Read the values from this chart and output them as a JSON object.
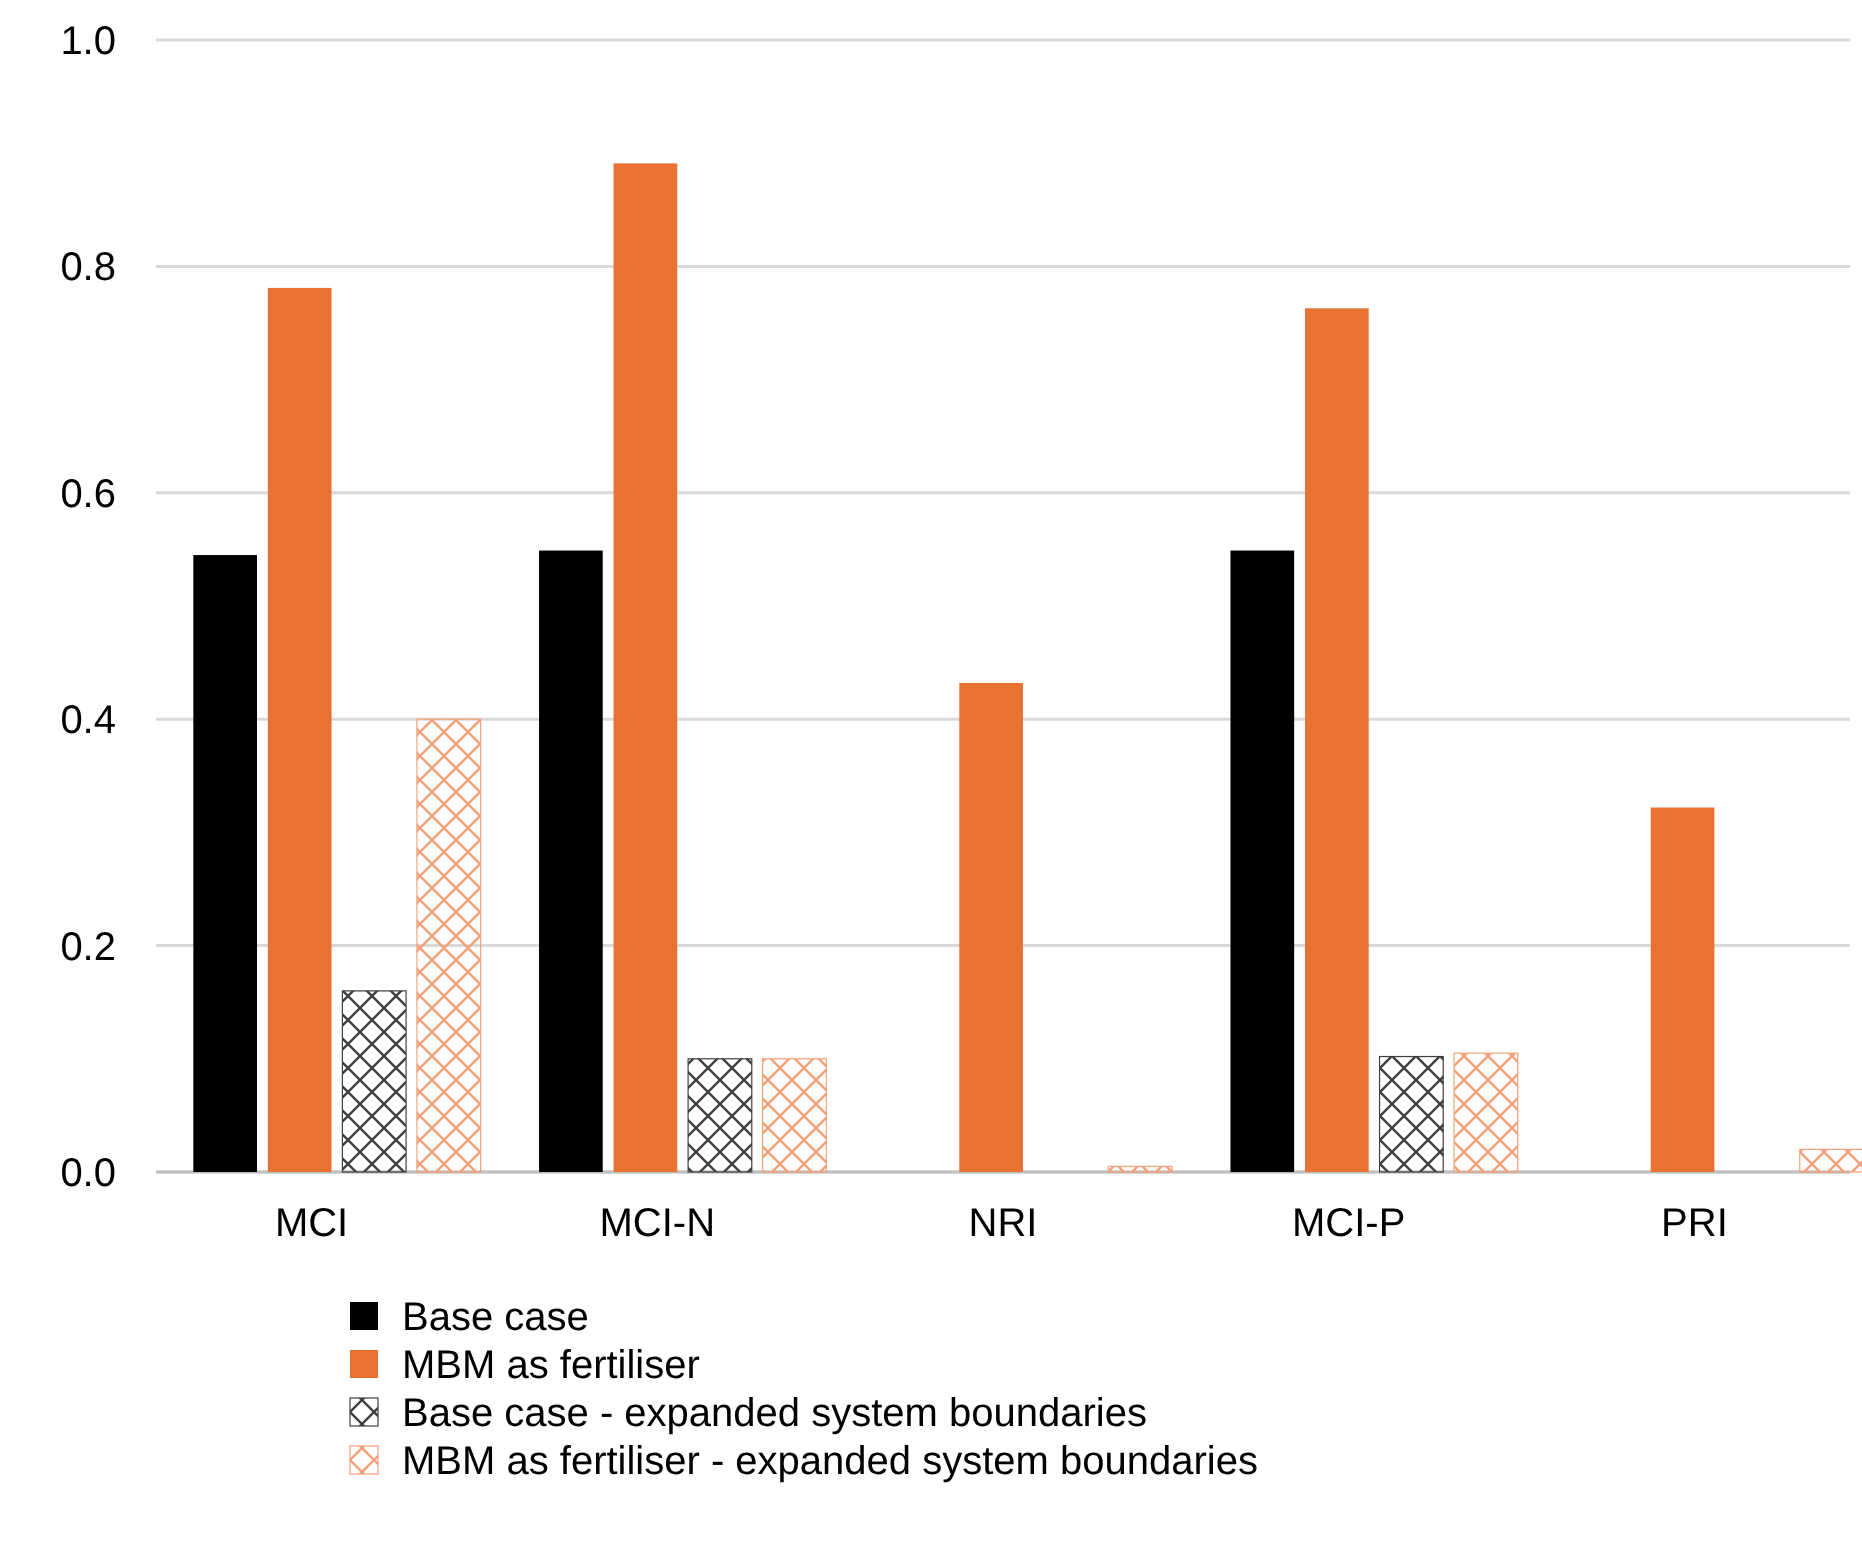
{
  "chart_data": {
    "type": "bar",
    "categories": [
      "MCI",
      "MCI-N",
      "NRI",
      "MCI-P",
      "PRI"
    ],
    "series": [
      {
        "name": "Base case",
        "color": "#000000",
        "values": [
          0.545,
          0.549,
          0,
          0.549,
          0
        ]
      },
      {
        "name": "MBM as fertiliser",
        "color": "#e97132",
        "values": [
          0.781,
          0.891,
          0.432,
          0.763,
          0.322
        ]
      },
      {
        "name": "Base case - expanded system boundaries",
        "color": "#404040",
        "marker": "cross",
        "values": [
          0.16,
          0.1,
          0,
          0.102,
          0
        ]
      },
      {
        "name": "MBM as fertiliser - expanded system boundaries",
        "color": "#f4a07a",
        "marker": "cross",
        "values": [
          0.4,
          0.1,
          0.005,
          0.105,
          0.02
        ]
      }
    ],
    "ylim": [
      0,
      1
    ],
    "yticks": [
      {
        "value": 0,
        "label": "0.0"
      },
      {
        "value": 0.2,
        "label": "0.2"
      },
      {
        "value": 0.4,
        "label": "0.4"
      },
      {
        "value": 0.6,
        "label": "0.6"
      },
      {
        "value": 0.8,
        "label": "0.8"
      },
      {
        "value": 1,
        "label": "1.0"
      }
    ],
    "grid": "y",
    "legend": "bottom"
  }
}
